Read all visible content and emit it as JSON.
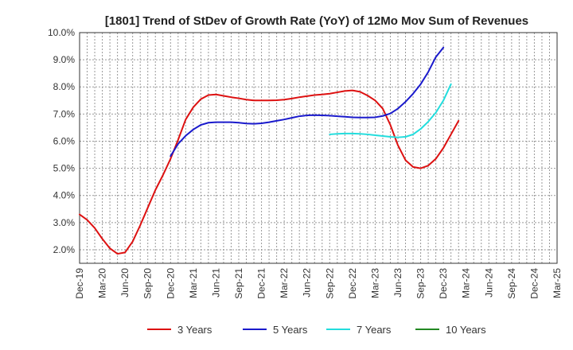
{
  "chart_data": {
    "type": "line",
    "title": "[1801]  Trend of StDev of Growth Rate (YoY) of 12Mo Mov Sum of Revenues",
    "xlabel": "",
    "ylabel": "",
    "ylim": [
      1.5,
      10.0
    ],
    "y_ticks": [
      2.0,
      3.0,
      4.0,
      5.0,
      6.0,
      7.0,
      8.0,
      9.0,
      10.0
    ],
    "y_tick_labels": [
      "2.0%",
      "3.0%",
      "4.0%",
      "5.0%",
      "6.0%",
      "7.0%",
      "8.0%",
      "9.0%",
      "10.0%"
    ],
    "x_tick_labels": [
      "Dec-19",
      "Mar-20",
      "Jun-20",
      "Sep-20",
      "Dec-20",
      "Mar-21",
      "Jun-21",
      "Sep-21",
      "Dec-21",
      "Mar-22",
      "Jun-22",
      "Sep-22",
      "Dec-22",
      "Mar-23",
      "Jun-23",
      "Sep-23",
      "Dec-23",
      "Mar-24",
      "Jun-24",
      "Sep-24",
      "Dec-24",
      "Mar-25"
    ],
    "grid": true,
    "legend_position": "bottom",
    "series": [
      {
        "name": "3 Years",
        "color": "#dd1111",
        "start_index": 0,
        "values": [
          3.3,
          3.1,
          2.8,
          2.4,
          2.05,
          1.85,
          1.9,
          2.3,
          2.9,
          3.55,
          4.2,
          4.75,
          5.35,
          6.05,
          6.8,
          7.25,
          7.55,
          7.7,
          7.72,
          7.67,
          7.62,
          7.58,
          7.53,
          7.5,
          7.5,
          7.5,
          7.51,
          7.53,
          7.57,
          7.62,
          7.66,
          7.7,
          7.72,
          7.75,
          7.8,
          7.85,
          7.87,
          7.82,
          7.68,
          7.5,
          7.2,
          6.6,
          5.85,
          5.3,
          5.05,
          5.0,
          5.1,
          5.35,
          5.75,
          6.25,
          6.75
        ]
      },
      {
        "name": "5 Years",
        "color": "#1a1acc",
        "start_index": 12,
        "values": [
          5.45,
          5.9,
          6.2,
          6.43,
          6.6,
          6.68,
          6.7,
          6.7,
          6.7,
          6.68,
          6.65,
          6.64,
          6.66,
          6.7,
          6.75,
          6.8,
          6.86,
          6.92,
          6.95,
          6.96,
          6.95,
          6.94,
          6.92,
          6.9,
          6.88,
          6.87,
          6.87,
          6.88,
          6.93,
          7.02,
          7.2,
          7.45,
          7.75,
          8.1,
          8.55,
          9.1,
          9.45
        ]
      },
      {
        "name": "7 Years",
        "color": "#22dddd",
        "start_index": 33,
        "values": [
          6.25,
          6.27,
          6.28,
          6.28,
          6.27,
          6.25,
          6.22,
          6.19,
          6.16,
          6.14,
          6.16,
          6.25,
          6.45,
          6.72,
          7.05,
          7.5,
          8.1
        ]
      },
      {
        "name": "10 Years",
        "color": "#228822",
        "start_index": 0,
        "values": []
      }
    ]
  }
}
